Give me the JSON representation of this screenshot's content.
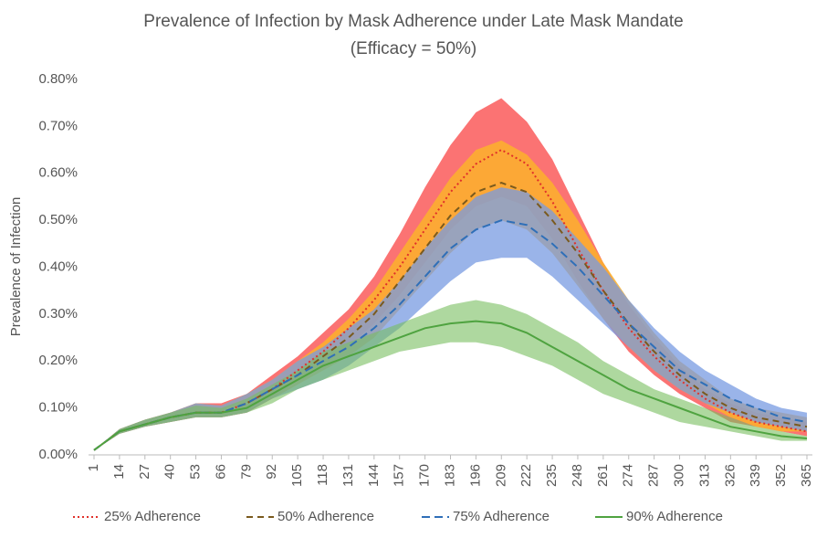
{
  "chart_data": {
    "type": "band-line",
    "title": "Prevalence of Infection by Mask Adherence under Late Mask Mandate",
    "subtitle": "(Efficacy = 50%)",
    "y_label": "Prevalence of Infection",
    "x": [
      1,
      14,
      27,
      40,
      53,
      66,
      79,
      92,
      105,
      118,
      131,
      144,
      157,
      170,
      183,
      196,
      209,
      222,
      235,
      248,
      261,
      274,
      287,
      300,
      313,
      326,
      339,
      352,
      365
    ],
    "xlim": [
      1,
      365
    ],
    "xticks": [
      1,
      14,
      27,
      40,
      53,
      66,
      79,
      92,
      105,
      118,
      131,
      144,
      157,
      170,
      183,
      196,
      209,
      222,
      235,
      248,
      261,
      274,
      287,
      300,
      313,
      326,
      339,
      352,
      365
    ],
    "ylim": [
      0,
      0.8
    ],
    "yticks": [
      {
        "value": 0,
        "label": "0.00%"
      },
      {
        "value": 0.1,
        "label": "0.10%"
      },
      {
        "value": 0.2,
        "label": "0.20%"
      },
      {
        "value": 0.3,
        "label": "0.30%"
      },
      {
        "value": 0.4,
        "label": "0.40%"
      },
      {
        "value": 0.5,
        "label": "0.50%"
      },
      {
        "value": 0.6,
        "label": "0.60%"
      },
      {
        "value": 0.7,
        "label": "0.70%"
      },
      {
        "value": 0.8,
        "label": "0.80%"
      }
    ],
    "grid": false,
    "legend": "bottom",
    "series": [
      {
        "name": "25% Adherence",
        "color": "#e0302a",
        "dash": "2,3",
        "band_color": "rgba(250,90,90,0.85)",
        "values": [
          0.01,
          0.05,
          0.065,
          0.08,
          0.09,
          0.09,
          0.11,
          0.14,
          0.18,
          0.22,
          0.27,
          0.33,
          0.4,
          0.48,
          0.56,
          0.62,
          0.65,
          0.62,
          0.54,
          0.44,
          0.35,
          0.27,
          0.21,
          0.16,
          0.12,
          0.09,
          0.07,
          0.06,
          0.05
        ],
        "upper": [
          0.01,
          0.055,
          0.075,
          0.09,
          0.11,
          0.11,
          0.13,
          0.17,
          0.21,
          0.26,
          0.31,
          0.38,
          0.47,
          0.57,
          0.66,
          0.73,
          0.76,
          0.71,
          0.63,
          0.52,
          0.41,
          0.32,
          0.25,
          0.19,
          0.14,
          0.11,
          0.09,
          0.08,
          0.07
        ],
        "lower": [
          0.01,
          0.045,
          0.06,
          0.07,
          0.08,
          0.08,
          0.09,
          0.12,
          0.15,
          0.19,
          0.23,
          0.28,
          0.34,
          0.41,
          0.48,
          0.53,
          0.55,
          0.53,
          0.46,
          0.37,
          0.29,
          0.22,
          0.17,
          0.13,
          0.1,
          0.07,
          0.06,
          0.05,
          0.04
        ]
      },
      {
        "name": "50% Adherence",
        "color": "#7a5a1e",
        "dash": "7,5",
        "band_color": "rgba(252,178,44,0.85)",
        "values": [
          0.01,
          0.05,
          0.065,
          0.08,
          0.09,
          0.09,
          0.11,
          0.14,
          0.17,
          0.21,
          0.25,
          0.3,
          0.37,
          0.44,
          0.51,
          0.56,
          0.58,
          0.56,
          0.5,
          0.43,
          0.35,
          0.28,
          0.22,
          0.17,
          0.13,
          0.1,
          0.08,
          0.07,
          0.06
        ],
        "upper": [
          0.01,
          0.055,
          0.075,
          0.09,
          0.11,
          0.105,
          0.13,
          0.16,
          0.2,
          0.24,
          0.29,
          0.35,
          0.43,
          0.51,
          0.59,
          0.65,
          0.67,
          0.64,
          0.58,
          0.5,
          0.41,
          0.33,
          0.26,
          0.2,
          0.16,
          0.12,
          0.1,
          0.09,
          0.08
        ],
        "lower": [
          0.01,
          0.045,
          0.06,
          0.07,
          0.08,
          0.08,
          0.09,
          0.12,
          0.15,
          0.18,
          0.21,
          0.25,
          0.31,
          0.37,
          0.43,
          0.48,
          0.5,
          0.48,
          0.43,
          0.36,
          0.29,
          0.23,
          0.18,
          0.14,
          0.11,
          0.08,
          0.06,
          0.05,
          0.05
        ]
      },
      {
        "name": "75% Adherence",
        "color": "#2f6fb8",
        "dash": "9,5",
        "band_color": "rgba(120,155,225,0.75)",
        "values": [
          0.01,
          0.05,
          0.065,
          0.08,
          0.09,
          0.09,
          0.11,
          0.14,
          0.17,
          0.2,
          0.23,
          0.27,
          0.32,
          0.38,
          0.44,
          0.48,
          0.5,
          0.49,
          0.45,
          0.4,
          0.34,
          0.28,
          0.23,
          0.18,
          0.15,
          0.12,
          0.1,
          0.08,
          0.07
        ],
        "upper": [
          0.01,
          0.055,
          0.075,
          0.09,
          0.11,
          0.105,
          0.13,
          0.16,
          0.2,
          0.23,
          0.27,
          0.31,
          0.37,
          0.44,
          0.5,
          0.55,
          0.57,
          0.56,
          0.52,
          0.46,
          0.4,
          0.33,
          0.27,
          0.22,
          0.18,
          0.15,
          0.12,
          0.1,
          0.09
        ],
        "lower": [
          0.01,
          0.045,
          0.06,
          0.07,
          0.08,
          0.08,
          0.09,
          0.12,
          0.14,
          0.16,
          0.19,
          0.23,
          0.27,
          0.32,
          0.37,
          0.41,
          0.42,
          0.42,
          0.38,
          0.33,
          0.28,
          0.23,
          0.18,
          0.14,
          0.11,
          0.09,
          0.07,
          0.06,
          0.05
        ]
      },
      {
        "name": "90% Adherence",
        "color": "#4fa340",
        "dash": "",
        "band_color": "rgba(120,190,95,0.6)",
        "values": [
          0.01,
          0.05,
          0.065,
          0.08,
          0.09,
          0.09,
          0.1,
          0.13,
          0.16,
          0.19,
          0.21,
          0.23,
          0.25,
          0.27,
          0.28,
          0.285,
          0.28,
          0.26,
          0.23,
          0.2,
          0.17,
          0.14,
          0.12,
          0.1,
          0.08,
          0.06,
          0.05,
          0.04,
          0.035
        ],
        "upper": [
          0.01,
          0.055,
          0.075,
          0.09,
          0.105,
          0.1,
          0.12,
          0.15,
          0.18,
          0.22,
          0.24,
          0.26,
          0.28,
          0.3,
          0.32,
          0.33,
          0.32,
          0.3,
          0.27,
          0.24,
          0.2,
          0.17,
          0.14,
          0.12,
          0.1,
          0.08,
          0.06,
          0.05,
          0.04
        ],
        "lower": [
          0.01,
          0.045,
          0.06,
          0.07,
          0.08,
          0.08,
          0.09,
          0.11,
          0.14,
          0.16,
          0.18,
          0.2,
          0.22,
          0.23,
          0.24,
          0.24,
          0.23,
          0.21,
          0.19,
          0.16,
          0.13,
          0.11,
          0.09,
          0.07,
          0.06,
          0.05,
          0.04,
          0.03,
          0.03
        ]
      }
    ]
  }
}
